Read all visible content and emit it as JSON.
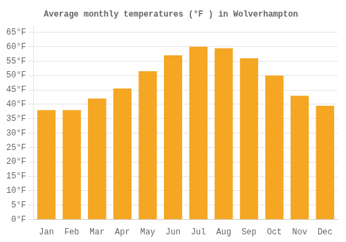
{
  "chart_data": {
    "type": "bar",
    "title": "Average monthly temperatures (°F ) in Wolverhampton",
    "categories": [
      "Jan",
      "Feb",
      "Mar",
      "Apr",
      "May",
      "Jun",
      "Jul",
      "Aug",
      "Sep",
      "Oct",
      "Nov",
      "Dec"
    ],
    "values": [
      38,
      38,
      42,
      45.5,
      51.5,
      57,
      60,
      59.5,
      56,
      50,
      43,
      39.5
    ],
    "color": "#F5A623",
    "ylim": [
      0,
      67
    ],
    "yticks": [
      {
        "value": 0,
        "label": "0°F"
      },
      {
        "value": 5,
        "label": "5°F"
      },
      {
        "value": 10,
        "label": "10°F"
      },
      {
        "value": 15,
        "label": "15°F"
      },
      {
        "value": 20,
        "label": "20°F"
      },
      {
        "value": 25,
        "label": "25°F"
      },
      {
        "value": 30,
        "label": "30°F"
      },
      {
        "value": 35,
        "label": "35°F"
      },
      {
        "value": 40,
        "label": "40°F"
      },
      {
        "value": 45,
        "label": "45°F"
      },
      {
        "value": 50,
        "label": "50°F"
      },
      {
        "value": 55,
        "label": "55°F"
      },
      {
        "value": 60,
        "label": "60°F"
      },
      {
        "value": 65,
        "label": "65°F"
      }
    ],
    "grid": true
  }
}
